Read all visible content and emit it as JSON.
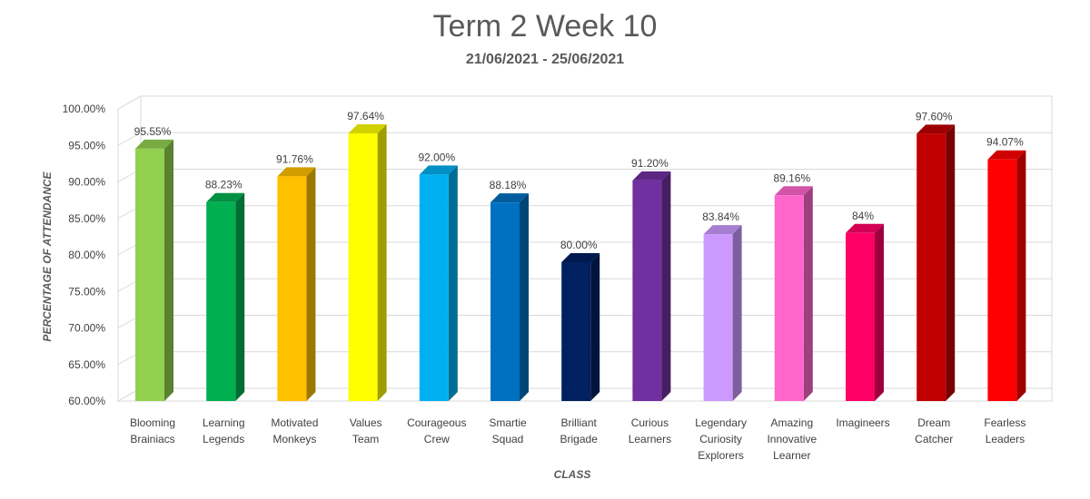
{
  "chart_data": {
    "type": "bar",
    "title": "Term 2 Week 10",
    "subtitle": "21/06/2021 - 25/06/2021",
    "xlabel": "CLASS",
    "ylabel": "PERCENTAGE OF ATTENDANCE",
    "ylim": [
      60,
      100
    ],
    "ytick_step": 5,
    "ytick_labels": [
      "60.00%",
      "65.00%",
      "70.00%",
      "75.00%",
      "80.00%",
      "85.00%",
      "90.00%",
      "95.00%",
      "100.00%"
    ],
    "grid": true,
    "categories": [
      [
        "Blooming",
        "Brainiacs"
      ],
      [
        "Learning",
        "Legends"
      ],
      [
        "Motivated",
        "Monkeys"
      ],
      [
        "Values",
        "Team"
      ],
      [
        "Courageous",
        "Crew"
      ],
      [
        "Smartie",
        "Squad"
      ],
      [
        "Brilliant",
        "Brigade"
      ],
      [
        "Curious",
        "Learners"
      ],
      [
        "Legendary",
        "Curiosity",
        "Explorers"
      ],
      [
        "Amazing",
        "Innovative",
        "Learner"
      ],
      [
        "Imagineers"
      ],
      [
        "Dream",
        "Catcher"
      ],
      [
        "Fearless",
        "Leaders"
      ]
    ],
    "values": [
      95.55,
      88.23,
      91.76,
      97.64,
      92.0,
      88.18,
      80.0,
      91.2,
      83.84,
      89.16,
      84,
      97.6,
      94.07
    ],
    "data_labels": [
      "95.55%",
      "88.23%",
      "91.76%",
      "97.64%",
      "92.00%",
      "88.18%",
      "80.00%",
      "91.20%",
      "83.84%",
      "89.16%",
      "84%",
      "97.60%",
      "94.07%"
    ],
    "colors": [
      "#92D050",
      "#00B050",
      "#FFC000",
      "#FFFF00",
      "#00B0F0",
      "#0070C0",
      "#002060",
      "#7030A0",
      "#CC99FF",
      "#FF66CC",
      "#FF0066",
      "#C00000",
      "#FF0000"
    ]
  }
}
